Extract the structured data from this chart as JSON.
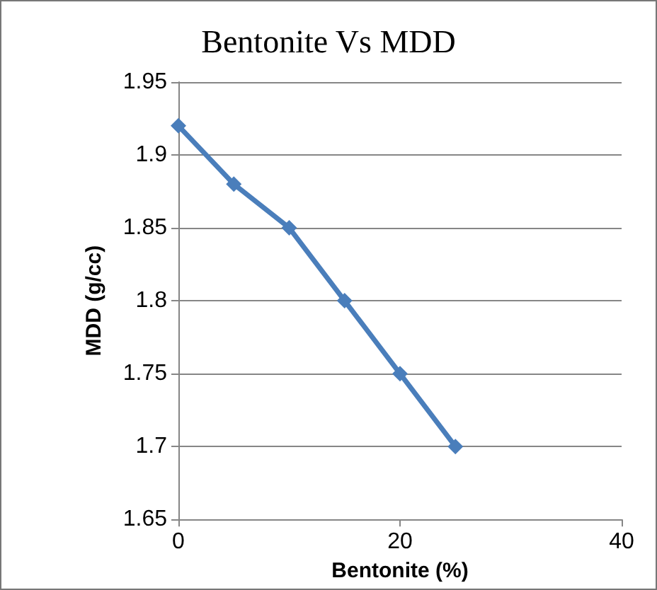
{
  "chart_data": {
    "type": "line",
    "title": "Bentonite Vs MDD",
    "xlabel": "Bentonite (%)",
    "ylabel": "MDD (g/cc)",
    "x": [
      0,
      5,
      10,
      15,
      20,
      25
    ],
    "series": [
      {
        "color": "#4a7ebb",
        "values": [
          1.92,
          1.88,
          1.85,
          1.8,
          1.75,
          1.7
        ]
      }
    ],
    "xlim": [
      0,
      40
    ],
    "xticks": [
      0,
      20,
      40
    ],
    "ylim": [
      1.65,
      1.95
    ],
    "yticks": [
      1.65,
      1.7,
      1.75,
      1.8,
      1.85,
      1.9,
      1.95
    ],
    "grid": "y",
    "marker": "diamond",
    "line_style": "solid"
  }
}
